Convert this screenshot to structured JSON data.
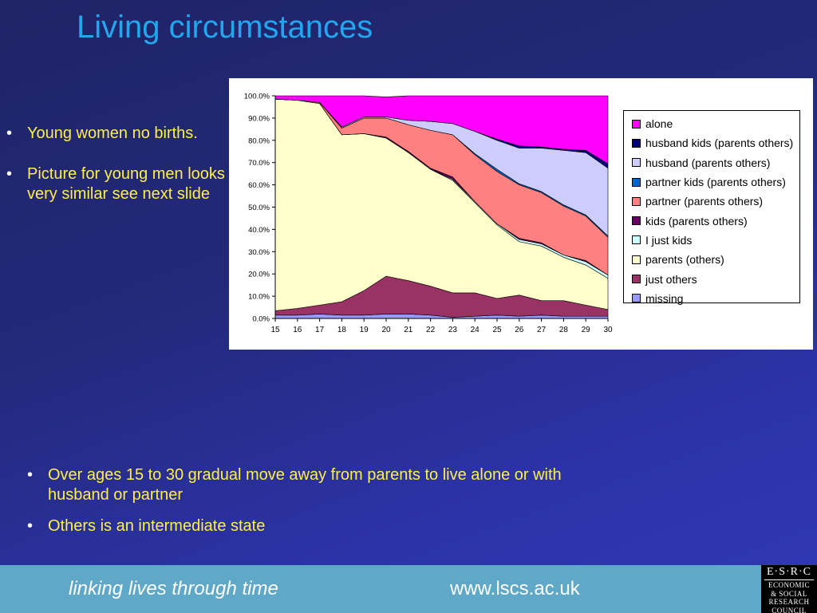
{
  "slide": {
    "title": "Living circumstances",
    "left_bullets": [
      "Young women no births.",
      "Picture for young men looks very similar see next slide"
    ],
    "bottom_bullets": [
      "Over ages 15 to 30 gradual move away from parents to live alone or with husband or partner",
      "Others is an intermediate state"
    ],
    "bullet_glyph": "•"
  },
  "footer": {
    "tagline": "linking lives through time",
    "website": "www.lscs.ac.uk",
    "logo_main": "E·S·R·C",
    "logo_lines": [
      "ECONOMIC",
      "& SOCIAL",
      "RESEARCH",
      "COUNCIL"
    ]
  },
  "chart_data": {
    "type": "area",
    "stacked": true,
    "percent": true,
    "x": [
      15,
      16,
      17,
      18,
      19,
      20,
      21,
      22,
      23,
      24,
      25,
      26,
      27,
      28,
      29,
      30
    ],
    "ylim": [
      0,
      100
    ],
    "yticks": [
      "0.0%",
      "10.0%",
      "20.0%",
      "30.0%",
      "40.0%",
      "50.0%",
      "60.0%",
      "70.0%",
      "80.0%",
      "90.0%",
      "100.0%"
    ],
    "legend_position": "right",
    "series": [
      {
        "name": "missing",
        "color": "#9999ff",
        "values": [
          1.5,
          1.5,
          2,
          1.5,
          1.5,
          2,
          2,
          1.5,
          0.5,
          1,
          1.5,
          1,
          1.5,
          1,
          1,
          1
        ]
      },
      {
        "name": "just others",
        "color": "#993366",
        "values": [
          2,
          3,
          4,
          6,
          11,
          17,
          15,
          13,
          11,
          10.5,
          7.5,
          9.5,
          6.5,
          7,
          5,
          3
        ]
      },
      {
        "name": "parents (others)",
        "color": "#ffffcc",
        "values": [
          95,
          93.5,
          90.5,
          75,
          70.5,
          62,
          57.5,
          52.5,
          50.5,
          40.5,
          33,
          24,
          24.5,
          19.5,
          18,
          14
        ]
      },
      {
        "name": "I just kids",
        "color": "#ccffff",
        "values": [
          0,
          0,
          0,
          0,
          0,
          0,
          0,
          0,
          0.5,
          0.5,
          0.5,
          1,
          1,
          1,
          1.5,
          1.5
        ]
      },
      {
        "name": "kids (parents others)",
        "color": "#660066",
        "values": [
          0,
          0,
          0,
          0,
          0,
          0.5,
          0.5,
          0.5,
          1,
          0,
          0,
          0.5,
          0.5,
          0,
          0.5,
          0
        ]
      },
      {
        "name": "partner (parents others)",
        "color": "#ff8080",
        "values": [
          0,
          0,
          0.5,
          3,
          7,
          8.5,
          12,
          17,
          19,
          21,
          23.5,
          24,
          22.5,
          22,
          20,
          17
        ]
      },
      {
        "name": "partner kids (parents others)",
        "color": "#0066cc",
        "values": [
          0,
          0,
          0,
          0,
          0,
          0,
          0,
          0,
          0,
          0.5,
          1,
          0.5,
          0.5,
          0.5,
          0.5,
          0.5
        ]
      },
      {
        "name": "husband (parents others)",
        "color": "#ccccff",
        "values": [
          0,
          0,
          0,
          0.5,
          0.5,
          0.5,
          2,
          4,
          5,
          10,
          13,
          16,
          19.5,
          24.5,
          28,
          30.5
        ]
      },
      {
        "name": "husband kids (parents others)",
        "color": "#000080",
        "values": [
          0,
          0,
          0,
          0,
          0,
          0,
          0,
          0,
          0,
          0,
          0.5,
          1,
          0.5,
          0.5,
          1,
          2
        ]
      },
      {
        "name": "alone",
        "color": "#ff00ff",
        "values": [
          1.5,
          2,
          3,
          14,
          9.5,
          9,
          11,
          11.5,
          12.5,
          16,
          19.5,
          22.5,
          23,
          24,
          24.5,
          30.5
        ]
      }
    ]
  }
}
